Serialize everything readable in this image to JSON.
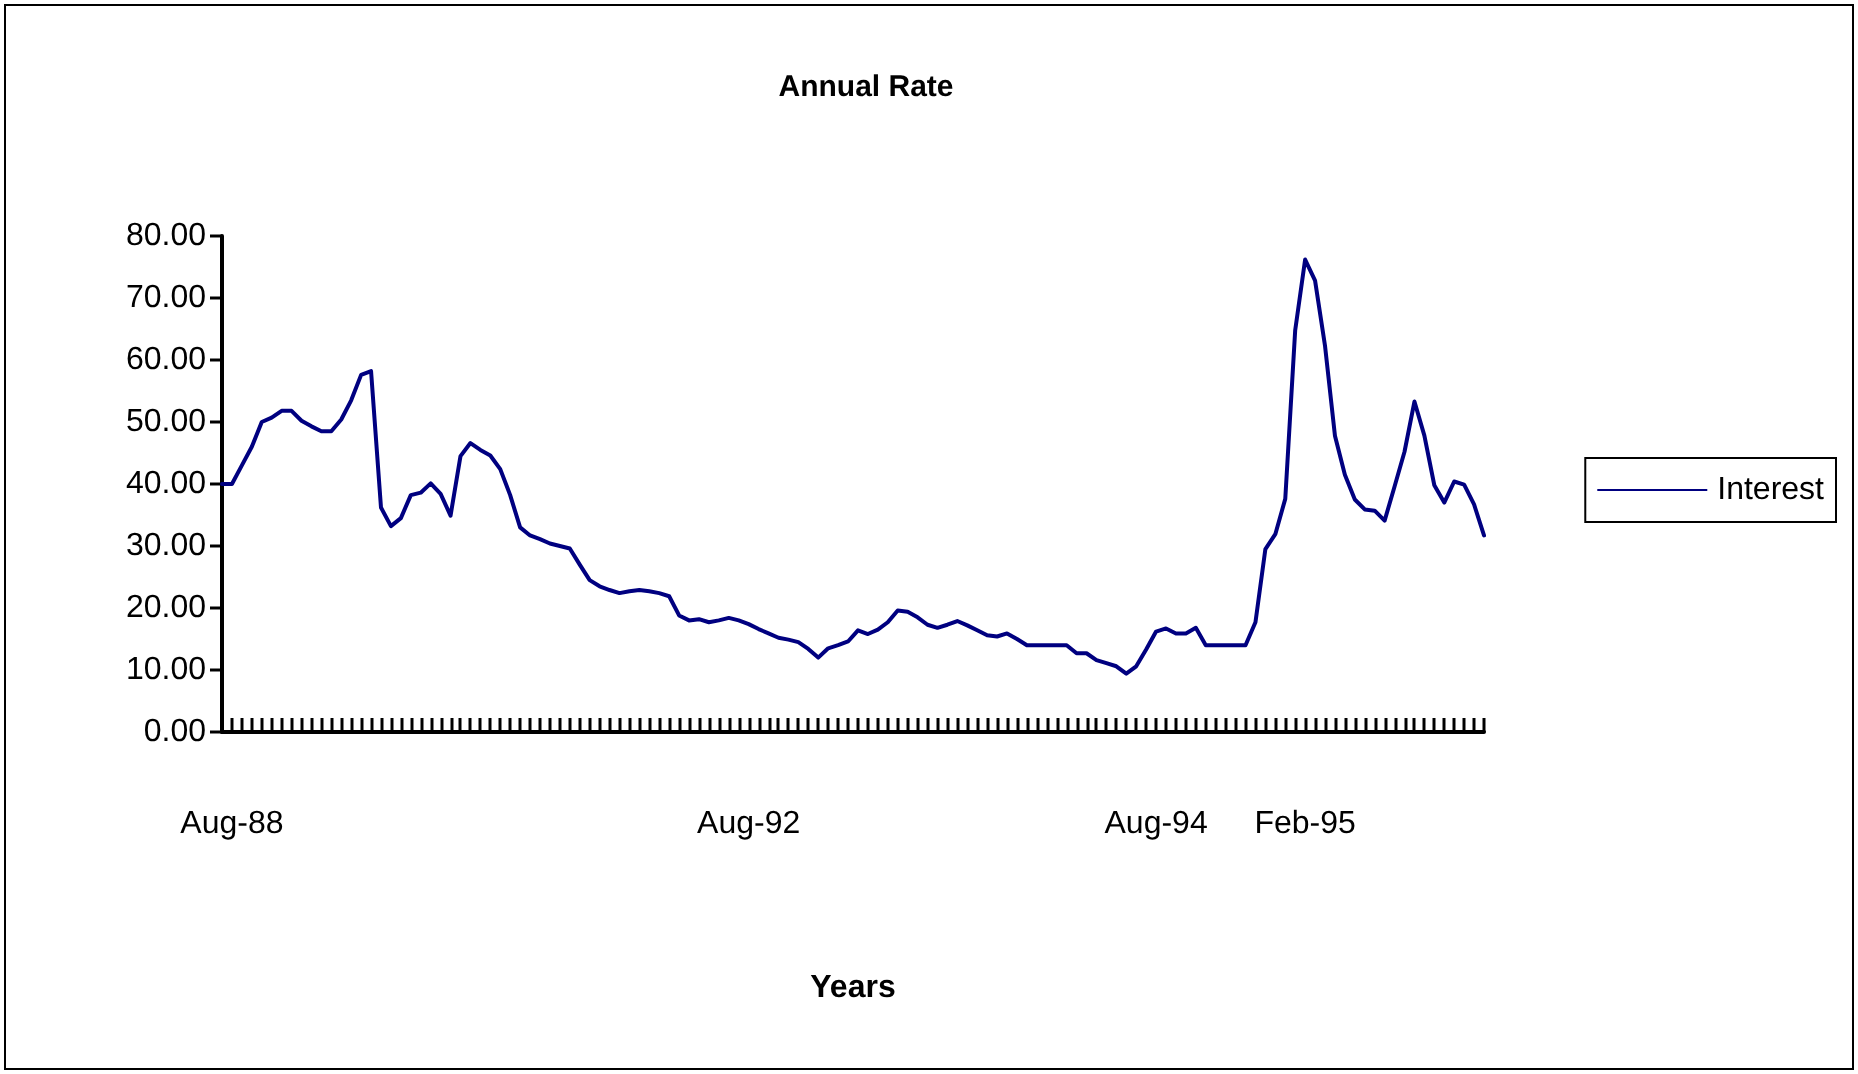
{
  "chart_data": {
    "type": "line",
    "title": "Annual Rate",
    "xlabel": "Years",
    "categories": [
      null,
      "Aug-88",
      null,
      null,
      null,
      null,
      null,
      null,
      null,
      null,
      null,
      null,
      null,
      null,
      null,
      null,
      null,
      null,
      null,
      null,
      null,
      null,
      null,
      null,
      null,
      null,
      null,
      null,
      null,
      null,
      null,
      null,
      null,
      null,
      null,
      null,
      null,
      null,
      null,
      null,
      null,
      null,
      null,
      null,
      null,
      null,
      null,
      null,
      null,
      null,
      null,
      null,
      null,
      "Aug-92",
      null,
      null,
      null,
      null,
      null,
      null,
      null,
      null,
      null,
      null,
      null,
      null,
      null,
      null,
      null,
      null,
      null,
      null,
      null,
      null,
      null,
      null,
      null,
      null,
      null,
      null,
      null,
      null,
      null,
      null,
      null,
      null,
      null,
      null,
      null,
      null,
      null,
      null,
      null,
      null,
      "Aug-94",
      null,
      null,
      null,
      null,
      null,
      null,
      null,
      null,
      null,
      null,
      null,
      null,
      null,
      null,
      "Feb-95",
      null,
      null,
      null,
      null,
      null,
      null,
      null,
      null,
      null,
      null,
      null,
      null,
      null,
      null,
      null,
      null,
      null,
      null
    ],
    "series": [
      {
        "name": "Interest",
        "color": "#000080",
        "values": [
          40,
          40,
          43,
          46,
          50,
          50.7,
          51.8,
          51.8,
          50.2,
          49.3,
          48.5,
          48.5,
          50.4,
          53.5,
          57.6,
          58.2,
          36.2,
          33.2,
          34.5,
          38.2,
          38.6,
          40.1,
          38.4,
          34.9,
          44.5,
          46.6,
          45.5,
          44.6,
          42.4,
          38.2,
          33,
          31.7,
          31.1,
          30.4,
          30,
          29.6,
          27,
          24.5,
          23.5,
          22.9,
          22.4,
          22.7,
          22.9,
          22.7,
          22.4,
          21.9,
          18.8,
          18,
          18.2,
          17.7,
          18,
          18.4,
          18,
          17.4,
          16.6,
          15.9,
          15.2,
          14.9,
          14.5,
          13.4,
          12,
          13.5,
          14,
          14.6,
          16.4,
          15.8,
          16.5,
          17.7,
          19.6,
          19.4,
          18.5,
          17.3,
          16.8,
          17.3,
          17.9,
          17.2,
          16.4,
          15.6,
          15.4,
          15.9,
          15,
          14,
          14,
          14,
          14,
          14,
          12.7,
          12.7,
          11.6,
          11.1,
          10.6,
          9.4,
          10.6,
          13.3,
          16.2,
          16.7,
          15.9,
          15.9,
          16.8,
          14,
          14,
          14,
          14,
          14,
          17.7,
          29.5,
          31.9,
          37.6,
          64.8,
          76.2,
          72.8,
          62.3,
          47.8,
          41.5,
          37.5,
          35.9,
          35.7,
          34.1,
          39.6,
          45.2,
          53.3,
          47.8,
          39.8,
          37,
          40.4,
          39.9,
          36.7,
          31.7
        ]
      }
    ],
    "ylim": [
      0,
      80
    ],
    "yticks": [
      {
        "value": 0,
        "label": "0.00"
      },
      {
        "value": 10,
        "label": "10.00"
      },
      {
        "value": 20,
        "label": "20.00"
      },
      {
        "value": 30,
        "label": "30.00"
      },
      {
        "value": 40,
        "label": "40.00"
      },
      {
        "value": 50,
        "label": "50.00"
      },
      {
        "value": 60,
        "label": "60.00"
      },
      {
        "value": 70,
        "label": "70.00"
      },
      {
        "value": 80,
        "label": "80.00"
      }
    ],
    "legend": "right",
    "grid": false,
    "marker": "none",
    "line_style": "solid"
  }
}
